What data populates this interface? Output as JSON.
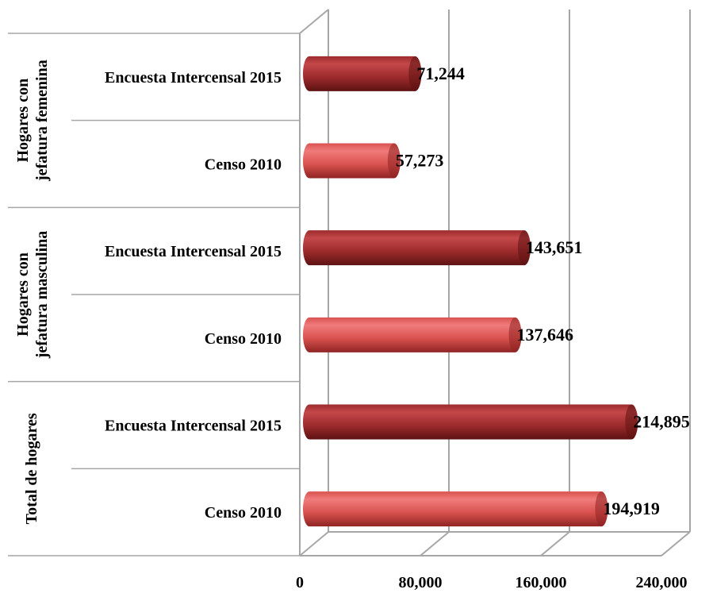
{
  "chart_data": {
    "type": "bar",
    "orientation": "horizontal",
    "style": "3d-cylinder",
    "title": "",
    "xlabel": "",
    "ylabel": "",
    "xlim": [
      0,
      240000
    ],
    "x_ticks": [
      0,
      80000,
      160000,
      240000
    ],
    "x_tick_labels": [
      "0",
      "80,000",
      "160,000",
      "240,000"
    ],
    "grid": true,
    "legend": "none",
    "groups": [
      {
        "label_lines": [
          "Total de hogares"
        ],
        "bars": [
          {
            "category": "Censo 2010",
            "value": 194919,
            "data_label": "194,919",
            "series": "censo"
          },
          {
            "category": "Encuesta Intercensal 2015",
            "value": 214895,
            "data_label": "214,895",
            "series": "encuesta"
          }
        ]
      },
      {
        "label_lines": [
          "Hogares con",
          "jefatura masculina"
        ],
        "bars": [
          {
            "category": "Censo 2010",
            "value": 137646,
            "data_label": "137,646",
            "series": "censo"
          },
          {
            "category": "Encuesta Intercensal 2015",
            "value": 143651,
            "data_label": "143,651",
            "series": "encuesta"
          }
        ]
      },
      {
        "label_lines": [
          "Hogares con",
          "jefatura femenina"
        ],
        "bars": [
          {
            "category": "Censo 2010",
            "value": 57273,
            "data_label": "57,273",
            "series": "censo"
          },
          {
            "category": "Encuesta Intercensal 2015",
            "value": 71244,
            "data_label": "71,244",
            "series": "encuesta"
          }
        ]
      }
    ],
    "colors": {
      "censo": {
        "light": "#f07b7b",
        "mid": "#d9524f",
        "dark": "#8f2423"
      },
      "encuesta": {
        "light": "#c4484a",
        "mid": "#9c2b2c",
        "dark": "#5e1213"
      },
      "grid": "#a6a6a6"
    }
  }
}
